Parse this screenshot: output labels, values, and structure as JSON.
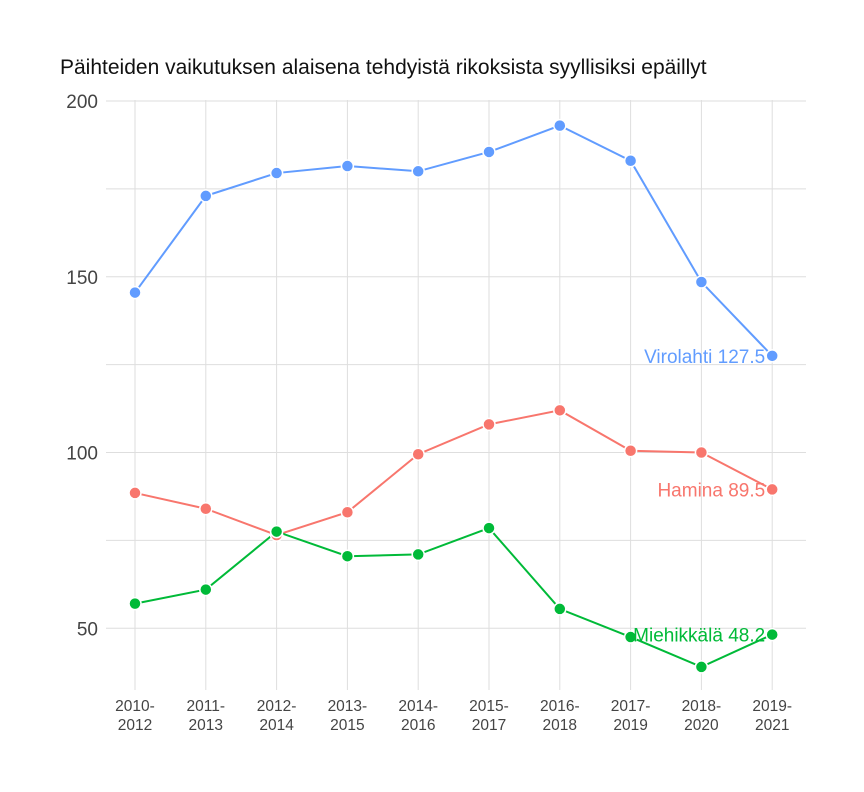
{
  "chart_data": {
    "type": "line",
    "title": "Päihteiden vaikutuksen alaisena tehdyistä rikoksista syyllisiksi epäillyt",
    "xlabel": "",
    "ylabel": "",
    "categories": [
      "2010-2012",
      "2011-2013",
      "2012-2014",
      "2013-2015",
      "2014-2016",
      "2015-2017",
      "2016-2018",
      "2017-2019",
      "2018-2020",
      "2019-2021"
    ],
    "category_lines": [
      [
        "2010-",
        "2012"
      ],
      [
        "2011-",
        "2013"
      ],
      [
        "2012-",
        "2014"
      ],
      [
        "2013-",
        "2015"
      ],
      [
        "2014-",
        "2016"
      ],
      [
        "2015-",
        "2017"
      ],
      [
        "2016-",
        "2018"
      ],
      [
        "2017-",
        "2019"
      ],
      [
        "2018-",
        "2020"
      ],
      [
        "2019-",
        "2021"
      ]
    ],
    "ylim": [
      32,
      200
    ],
    "yticks": [
      50,
      100,
      150,
      200
    ],
    "grid": true,
    "series": [
      {
        "name": "Virolahti",
        "end_label": "Virolahti 127.5",
        "color": "#619cff",
        "values": [
          145.5,
          173,
          179.5,
          181.5,
          180,
          185.5,
          193,
          183,
          148.5,
          127.5
        ]
      },
      {
        "name": "Hamina",
        "end_label": "Hamina 89.5",
        "color": "#f8766d",
        "values": [
          88.5,
          84,
          76.5,
          83,
          99.5,
          108,
          112,
          100.5,
          100,
          89.5
        ]
      },
      {
        "name": "Miehikkälä",
        "end_label": "Miehikkälä 48.2",
        "color": "#00ba38",
        "values": [
          57,
          61,
          77.5,
          70.5,
          71,
          78.5,
          55.5,
          47.5,
          39,
          48.2
        ]
      }
    ]
  }
}
